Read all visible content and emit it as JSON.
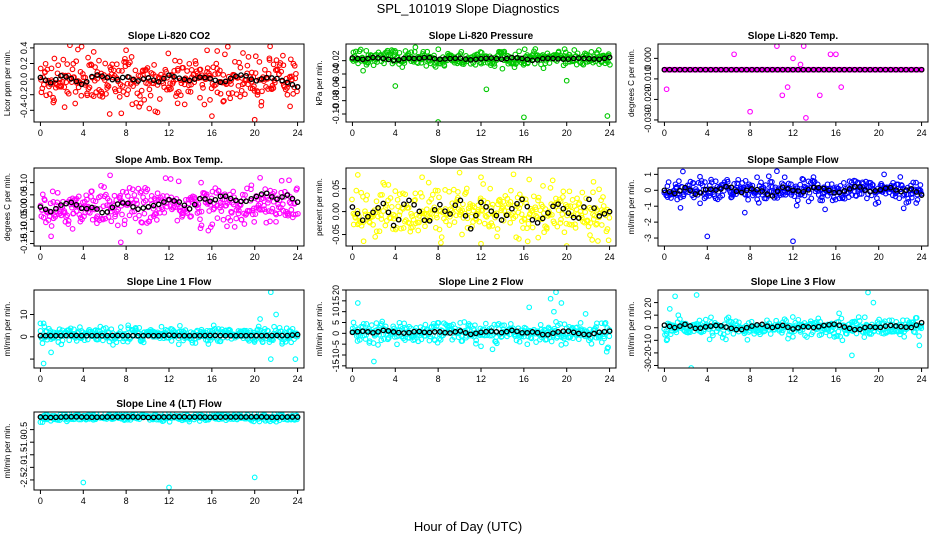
{
  "figure": {
    "title": "SPL_101019  Slope Diagnostics",
    "xlabel": "Hour of Day (UTC)"
  },
  "chart_data": [
    {
      "type": "scatter",
      "title": "Slope Li-820 CO2",
      "ylabel": "Licor ppm per min.",
      "point_color": "#ff0000",
      "mean_color": "#000000",
      "xlim": [
        -0.6,
        24.6
      ],
      "ylim": [
        -0.55,
        0.45
      ],
      "xticks": [
        0,
        4,
        8,
        12,
        16,
        20,
        24
      ],
      "yticks": [
        -0.4,
        -0.2,
        0.0,
        0.2,
        0.4
      ],
      "ytick_labels": [
        "-0.4",
        "-0.2",
        "0.0",
        "0.2",
        "0.4"
      ],
      "scatter": {
        "center": 0.0,
        "spread": 0.15,
        "outliers": [
          [
            20,
            -0.52
          ],
          [
            8,
            0.37
          ],
          [
            3.5,
            0.38
          ],
          [
            16.5,
            0.36
          ],
          [
            23.3,
            -0.35
          ],
          [
            1.2,
            -0.3
          ],
          [
            12.8,
            -0.31
          ]
        ]
      },
      "mean": {
        "values": [
          0.02,
          -0.05,
          0.05,
          0.0,
          -0.08,
          0.06,
          0.03,
          -0.02,
          0.04,
          -0.03,
          0.02,
          -0.04,
          0.05,
          0.01,
          -0.02,
          0.03,
          0.0,
          -0.05,
          0.03,
          0.06,
          -0.03,
          0.02,
          0.01,
          -0.04,
          -0.1
        ]
      }
    },
    {
      "type": "scatter",
      "title": "Slope Li-820 Pressure",
      "ylabel": "kPa per min.",
      "point_color": "#00c800",
      "mean_color": "#000000",
      "xlim": [
        -0.6,
        24.6
      ],
      "ylim": [
        -0.112,
        0.005
      ],
      "xticks": [
        0,
        4,
        8,
        12,
        16,
        20,
        24
      ],
      "yticks": [
        -0.1,
        -0.08,
        -0.06,
        -0.04,
        -0.02
      ],
      "ytick_labels": [
        "-0.10",
        "-0.08",
        "-0.06",
        "-0.04",
        "-0.02"
      ],
      "scatter": {
        "center": -0.017,
        "spread": 0.006,
        "outliers": [
          [
            4,
            -0.058
          ],
          [
            8,
            -0.112
          ],
          [
            12.5,
            -0.063
          ],
          [
            16,
            -0.105
          ],
          [
            23.8,
            -0.103
          ],
          [
            20,
            -0.05
          ],
          [
            1,
            -0.035
          ],
          [
            14,
            -0.032
          ]
        ]
      },
      "mean": {
        "values": [
          -0.016,
          -0.018,
          -0.015,
          -0.017,
          -0.02,
          -0.016,
          -0.017,
          -0.015,
          -0.018,
          -0.017,
          -0.016,
          -0.019,
          -0.017,
          -0.016,
          -0.018,
          -0.015,
          -0.017,
          -0.02,
          -0.016,
          -0.017,
          -0.018,
          -0.016,
          -0.017,
          -0.018,
          -0.015
        ]
      }
    },
    {
      "type": "scatter",
      "title": "Slope Li-820 Temp.",
      "ylabel": "degrees C per min.",
      "point_color": "#ff00ff",
      "mean_color": "#000000",
      "xlim": [
        -0.6,
        24.6
      ],
      "ylim": [
        -0.031,
        0.007
      ],
      "xticks": [
        0,
        4,
        8,
        12,
        16,
        20,
        24
      ],
      "yticks": [
        -0.03,
        -0.02,
        -0.01,
        0.0
      ],
      "ytick_labels": [
        "-0.030",
        "-0.020",
        "-0.010",
        "0.000"
      ],
      "scatter": {
        "center": -0.0055,
        "spread": 0.0,
        "outliers": [
          [
            0.2,
            -0.015
          ],
          [
            6.5,
            0.002
          ],
          [
            8,
            -0.026
          ],
          [
            10.5,
            0.006
          ],
          [
            11.5,
            -0.014
          ],
          [
            12,
            0.0
          ],
          [
            12.7,
            -0.003
          ],
          [
            13.2,
            -0.029
          ],
          [
            14.5,
            -0.018
          ],
          [
            15.5,
            0.002
          ],
          [
            16,
            0.002
          ],
          [
            16.5,
            -0.014
          ],
          [
            11,
            -0.018
          ],
          [
            13,
            0.006
          ]
        ]
      },
      "mean": {
        "values": [
          -0.0055,
          -0.0055,
          -0.0055,
          -0.0055,
          -0.0055,
          -0.0055,
          -0.0055,
          -0.0055,
          -0.0055,
          -0.0055,
          -0.0055,
          -0.0055,
          -0.0055,
          -0.0055,
          -0.0055,
          -0.0055,
          -0.0055,
          -0.0055,
          -0.0055,
          -0.0055,
          -0.0055,
          -0.0055,
          -0.0055,
          -0.0055,
          -0.0055
        ]
      }
    },
    {
      "type": "scatter",
      "title": "Slope Amb. Box Temp.",
      "ylabel": "degrees C per min.",
      "point_color": "#ff00ff",
      "mean_color": "#000000",
      "xlim": [
        -0.6,
        24.6
      ],
      "ylim": [
        -0.16,
        0.16
      ],
      "xticks": [
        0,
        4,
        8,
        12,
        16,
        20,
        24
      ],
      "yticks": [
        -0.15,
        -0.1,
        -0.05,
        0.0,
        0.05,
        0.1
      ],
      "ytick_labels": [
        "-0.15",
        "-0.10",
        "-0.05",
        "0.00",
        "0.05",
        "0.10"
      ],
      "scatter": {
        "center": 0.005,
        "spread": 0.04,
        "outliers": [
          [
            7.5,
            -0.145
          ],
          [
            6.5,
            0.13
          ],
          [
            1,
            -0.12
          ],
          [
            20.5,
            0.12
          ],
          [
            23.2,
            0.11
          ],
          [
            3,
            -0.09
          ],
          [
            15,
            0.1
          ]
        ]
      },
      "mean": {
        "values": [
          0.0,
          -0.02,
          0.01,
          0.02,
          -0.01,
          0.0,
          -0.03,
          0.01,
          0.02,
          -0.01,
          0.0,
          0.01,
          0.03,
          0.02,
          -0.01,
          0.04,
          0.02,
          0.05,
          0.03,
          0.02,
          0.04,
          0.06,
          0.03,
          0.05,
          0.02
        ]
      }
    },
    {
      "type": "scatter",
      "title": "Slope Gas Stream RH",
      "ylabel": "percent per min.",
      "point_color": "#ffff00",
      "mean_color": "#000000",
      "xlim": [
        -0.6,
        24.6
      ],
      "ylim": [
        -0.075,
        0.095
      ],
      "xticks": [
        0,
        4,
        8,
        12,
        16,
        20,
        24
      ],
      "yticks": [
        -0.05,
        0.0,
        0.05
      ],
      "ytick_labels": [
        "-0.05",
        "0.00",
        "0.05"
      ],
      "scatter": {
        "center": 0.0,
        "spread": 0.025,
        "outliers": [
          [
            10,
            0.085
          ],
          [
            12,
            0.075
          ],
          [
            0.5,
            0.08
          ],
          [
            16.5,
            0.07
          ],
          [
            12,
            -0.07
          ],
          [
            20,
            -0.075
          ],
          [
            6.5,
            0.075
          ],
          [
            22.5,
            0.065
          ]
        ]
      },
      "mean": {
        "values": [
          0.01,
          -0.02,
          0.0,
          0.02,
          -0.04,
          0.03,
          0.01,
          -0.03,
          0.02,
          -0.01,
          0.03,
          -0.04,
          0.02,
          0.0,
          -0.02,
          0.01,
          0.03,
          -0.03,
          -0.01,
          0.02,
          0.0,
          -0.02,
          0.03,
          -0.01,
          0.0
        ]
      }
    },
    {
      "type": "scatter",
      "title": "Slope Sample Flow",
      "ylabel": "ml/min per min.",
      "point_color": "#0000ff",
      "mean_color": "#000000",
      "xlim": [
        -0.6,
        24.6
      ],
      "ylim": [
        -3.5,
        1.4
      ],
      "xticks": [
        0,
        4,
        8,
        12,
        16,
        20,
        24
      ],
      "yticks": [
        -3,
        -2,
        -1,
        0,
        1
      ],
      "ytick_labels": [
        "-3",
        "-2",
        "-1",
        "0",
        "1"
      ],
      "scatter": {
        "center": 0.0,
        "spread": 0.35,
        "outliers": [
          [
            4,
            -2.9
          ],
          [
            12,
            -3.2
          ],
          [
            10.5,
            1.2
          ],
          [
            1.5,
            -1.1
          ],
          [
            15,
            -1.2
          ],
          [
            20.5,
            1.0
          ],
          [
            7.5,
            -1.4
          ],
          [
            23.5,
            -0.8
          ]
        ]
      },
      "mean": {
        "values": [
          0.0,
          -0.2,
          0.2,
          -0.3,
          0.1,
          0.0,
          0.3,
          -0.2,
          0.1,
          0.0,
          -0.4,
          0.2,
          0.0,
          -0.1,
          0.2,
          0.1,
          -0.2,
          0.0,
          0.3,
          -0.1,
          0.0,
          0.2,
          -0.1,
          0.1,
          -0.3
        ]
      }
    },
    {
      "type": "scatter",
      "title": "Slope Line 1 Flow",
      "ylabel": "ml/min per min.",
      "point_color": "#00ffff",
      "mean_color": "#000000",
      "xlim": [
        -0.6,
        24.6
      ],
      "ylim": [
        -14,
        21
      ],
      "xticks": [
        0,
        4,
        8,
        12,
        16,
        20,
        24
      ],
      "yticks": [
        -10,
        0,
        10
      ],
      "ytick_labels": [
        "",
        "0",
        "10"
      ],
      "scatter": {
        "center": 1,
        "spread": 1.8,
        "outliers": [
          [
            21.5,
            20
          ],
          [
            0.3,
            -12
          ],
          [
            21.5,
            -10
          ],
          [
            23.8,
            -10
          ],
          [
            1,
            -7
          ],
          [
            0,
            6
          ],
          [
            20.5,
            8
          ],
          [
            22,
            10
          ]
        ]
      },
      "mean": {
        "values": [
          0.5,
          0.5,
          0.5,
          0.6,
          0.5,
          0.5,
          0.5,
          0.6,
          0.5,
          0.5,
          0.5,
          0.5,
          0.7,
          0.5,
          0.5,
          0.5,
          0.6,
          0.5,
          0.5,
          0.5,
          0.5,
          0.5,
          0.6,
          0.5,
          1.0
        ]
      }
    },
    {
      "type": "scatter",
      "title": "Slope Line 2 Flow",
      "ylabel": "ml/min per min.",
      "point_color": "#00ffff",
      "mean_color": "#000000",
      "xlim": [
        -0.6,
        24.6
      ],
      "ylim": [
        -16,
        20
      ],
      "xticks": [
        0,
        4,
        8,
        12,
        16,
        20,
        24
      ],
      "yticks": [
        -15,
        -10,
        -5,
        0,
        5,
        10,
        15,
        20
      ],
      "ytick_labels": [
        "-15",
        "-10",
        "-5",
        "0",
        "5",
        "10",
        "15",
        "20"
      ],
      "scatter": {
        "center": 0,
        "spread": 2.5,
        "outliers": [
          [
            19,
            19
          ],
          [
            18.5,
            16
          ],
          [
            2,
            -13
          ],
          [
            0.5,
            14
          ],
          [
            16.5,
            12
          ],
          [
            19.5,
            14
          ],
          [
            18.8,
            10
          ],
          [
            23.8,
            -7
          ],
          [
            12,
            -6
          ]
        ]
      },
      "mean": {
        "values": [
          0.5,
          1.0,
          0.2,
          1.5,
          0.5,
          0.0,
          1.0,
          0.3,
          0.8,
          0.0,
          1.2,
          -0.5,
          0.5,
          1.0,
          0.3,
          1.5,
          0.0,
          0.8,
          -1.0,
          0.5,
          1.2,
          0.0,
          -0.8,
          0.5,
          1.0
        ]
      }
    },
    {
      "type": "scatter",
      "title": "Slope Line 3 Flow",
      "ylabel": "ml/min per min.",
      "point_color": "#00ffff",
      "mean_color": "#000000",
      "xlim": [
        -0.6,
        24.6
      ],
      "ylim": [
        -32,
        30
      ],
      "xticks": [
        0,
        4,
        8,
        12,
        16,
        20,
        24
      ],
      "yticks": [
        -30,
        -20,
        -10,
        0,
        10,
        20
      ],
      "ytick_labels": [
        "-30",
        "-20",
        "-10",
        "0",
        "10",
        "20"
      ],
      "scatter": {
        "center": 0,
        "spread": 3.5,
        "outliers": [
          [
            19,
            28
          ],
          [
            1,
            25
          ],
          [
            3,
            26
          ],
          [
            17.5,
            -22
          ],
          [
            0.2,
            -10
          ],
          [
            23.8,
            -14
          ],
          [
            2.5,
            -32
          ],
          [
            19.5,
            20
          ],
          [
            0.5,
            15
          ]
        ]
      },
      "mean": {
        "values": [
          2,
          0,
          3,
          -1,
          1,
          2,
          0,
          -2,
          1,
          3,
          0,
          2,
          -1,
          1,
          0,
          2,
          3,
          0,
          -2,
          1,
          0,
          2,
          1,
          0,
          4
        ]
      }
    },
    {
      "type": "scatter",
      "title": "Slope Line 4 (LT) Flow",
      "ylabel": "ml/min per min.",
      "point_color": "#00ffff",
      "mean_color": "#000000",
      "xlim": [
        -0.6,
        24.6
      ],
      "ylim": [
        -2.9,
        0.2
      ],
      "xticks": [
        0,
        4,
        8,
        12,
        16,
        20,
        24
      ],
      "yticks": [
        -2.5,
        -2.0,
        -1.5,
        -1.0,
        -0.5
      ],
      "ytick_labels": [
        "-2.5",
        "-2.0",
        "-1.5",
        "-1.0",
        "-0.5"
      ],
      "scatter": {
        "center": 0.0,
        "spread": 0.07,
        "outliers": [
          [
            4,
            -2.6
          ],
          [
            12,
            -2.8
          ],
          [
            20,
            -2.4
          ],
          [
            0.2,
            -0.2
          ],
          [
            21,
            -0.15
          ]
        ]
      },
      "mean": {
        "values": [
          0.0,
          -0.02,
          0.0,
          0.01,
          0.0,
          -0.01,
          0.0,
          0.0,
          0.01,
          0.0,
          -0.02,
          0.0,
          0.0,
          0.01,
          0.0,
          0.0,
          -0.01,
          0.0,
          0.0,
          0.0,
          0.01,
          0.0,
          -0.01,
          0.0,
          0.0
        ]
      }
    }
  ]
}
